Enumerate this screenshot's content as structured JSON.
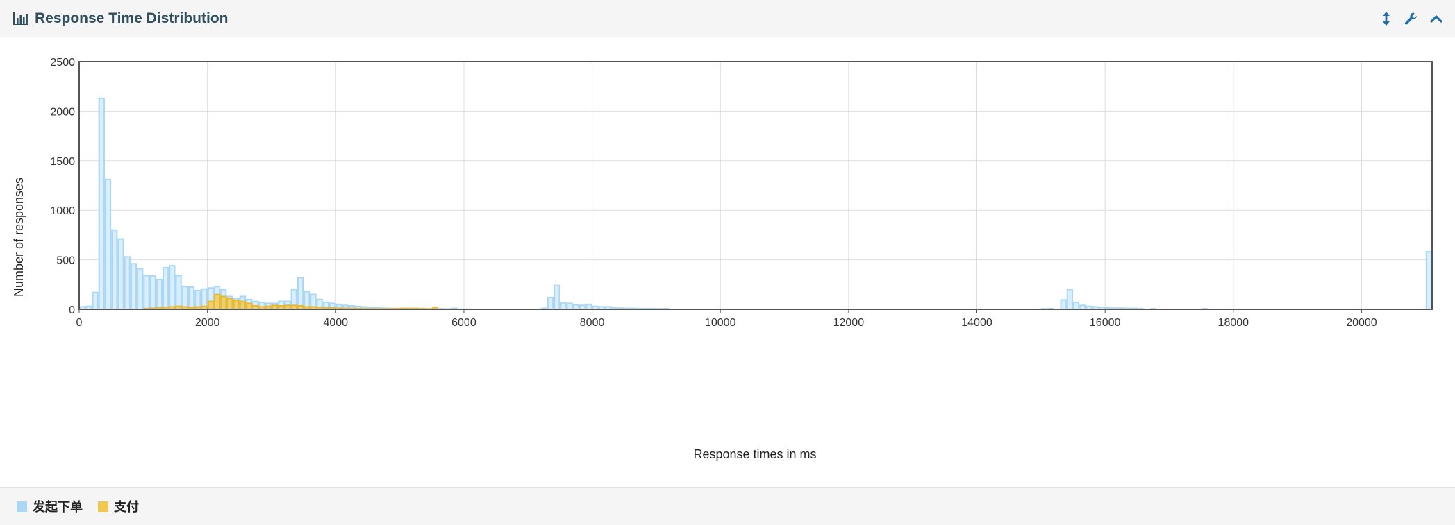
{
  "panel": {
    "title": "Response Time Distribution",
    "title_icon": "bar-chart-icon",
    "tools": [
      {
        "name": "resize-vertical-icon"
      },
      {
        "name": "wrench-icon"
      },
      {
        "name": "chevron-up-icon"
      }
    ]
  },
  "colors": {
    "series_1_fill": "#d3ebfb",
    "series_1_stroke": "#a9d7f5",
    "series_2_fill": "#f1c84f",
    "series_2_stroke": "#e8b92e",
    "header_bg": "#f5f5f5",
    "title_text": "#2f4f5f",
    "tool_icon": "#1f6fa8"
  },
  "chart_data": {
    "type": "bar",
    "title": "",
    "xlabel": "Response times in ms",
    "ylabel": "Number of responses",
    "xlim": [
      0,
      21100
    ],
    "ylim": [
      0,
      2500
    ],
    "x_ticks": [
      0,
      2000,
      4000,
      6000,
      8000,
      10000,
      12000,
      14000,
      16000,
      18000,
      20000
    ],
    "x_tick_labels": [
      "0",
      "2000",
      "4000",
      "6000",
      "8000",
      "10000",
      "12000",
      "14000",
      "16000",
      "18000",
      "20000"
    ],
    "y_ticks": [
      0,
      500,
      1000,
      1500,
      2000,
      2500
    ],
    "y_tick_labels": [
      "0",
      "500",
      "1000",
      "1500",
      "2000",
      "2500"
    ],
    "bin_width": 100,
    "grid": true,
    "legend_position": "bottom-left",
    "series": [
      {
        "name": "发起下单",
        "points": [
          [
            0,
            25
          ],
          [
            100,
            30
          ],
          [
            200,
            170
          ],
          [
            300,
            2130
          ],
          [
            400,
            1310
          ],
          [
            500,
            800
          ],
          [
            600,
            710
          ],
          [
            700,
            530
          ],
          [
            800,
            460
          ],
          [
            900,
            410
          ],
          [
            1000,
            340
          ],
          [
            1100,
            335
          ],
          [
            1200,
            300
          ],
          [
            1300,
            420
          ],
          [
            1400,
            440
          ],
          [
            1500,
            340
          ],
          [
            1600,
            230
          ],
          [
            1700,
            225
          ],
          [
            1800,
            190
          ],
          [
            1900,
            205
          ],
          [
            2000,
            215
          ],
          [
            2100,
            230
          ],
          [
            2200,
            200
          ],
          [
            2300,
            130
          ],
          [
            2400,
            110
          ],
          [
            2500,
            130
          ],
          [
            2600,
            100
          ],
          [
            2700,
            80
          ],
          [
            2800,
            70
          ],
          [
            2900,
            60
          ],
          [
            3000,
            60
          ],
          [
            3100,
            80
          ],
          [
            3200,
            80
          ],
          [
            3300,
            200
          ],
          [
            3400,
            320
          ],
          [
            3500,
            180
          ],
          [
            3600,
            150
          ],
          [
            3700,
            100
          ],
          [
            3800,
            70
          ],
          [
            3900,
            60
          ],
          [
            4000,
            50
          ],
          [
            4100,
            40
          ],
          [
            4200,
            35
          ],
          [
            4300,
            30
          ],
          [
            4400,
            25
          ],
          [
            4500,
            20
          ],
          [
            4600,
            15
          ],
          [
            4700,
            12
          ],
          [
            4800,
            10
          ],
          [
            4900,
            8
          ],
          [
            5000,
            8
          ],
          [
            5100,
            6
          ],
          [
            5200,
            5
          ],
          [
            5300,
            5
          ],
          [
            5400,
            4
          ],
          [
            5500,
            4
          ],
          [
            5600,
            6
          ],
          [
            5700,
            4
          ],
          [
            5800,
            10
          ],
          [
            5900,
            2
          ],
          [
            6000,
            2
          ],
          [
            7200,
            10
          ],
          [
            7300,
            120
          ],
          [
            7400,
            240
          ],
          [
            7500,
            65
          ],
          [
            7600,
            60
          ],
          [
            7700,
            45
          ],
          [
            7800,
            40
          ],
          [
            7900,
            50
          ],
          [
            8000,
            30
          ],
          [
            8100,
            25
          ],
          [
            8200,
            25
          ],
          [
            8300,
            15
          ],
          [
            8400,
            12
          ],
          [
            8500,
            10
          ],
          [
            8600,
            10
          ],
          [
            8700,
            8
          ],
          [
            8800,
            8
          ],
          [
            8900,
            8
          ],
          [
            9000,
            6
          ],
          [
            9100,
            8
          ],
          [
            15000,
            5
          ],
          [
            15100,
            8
          ],
          [
            15300,
            95
          ],
          [
            15400,
            200
          ],
          [
            15500,
            70
          ],
          [
            15600,
            40
          ],
          [
            15700,
            30
          ],
          [
            15800,
            25
          ],
          [
            15900,
            20
          ],
          [
            16000,
            15
          ],
          [
            16100,
            12
          ],
          [
            16200,
            12
          ],
          [
            16300,
            10
          ],
          [
            16400,
            10
          ],
          [
            16500,
            8
          ],
          [
            16700,
            6
          ],
          [
            17500,
            6
          ],
          [
            21000,
            580
          ]
        ]
      },
      {
        "name": "支付",
        "points": [
          [
            1000,
            8
          ],
          [
            1100,
            12
          ],
          [
            1200,
            18
          ],
          [
            1300,
            20
          ],
          [
            1400,
            25
          ],
          [
            1500,
            30
          ],
          [
            1600,
            25
          ],
          [
            1700,
            20
          ],
          [
            1800,
            25
          ],
          [
            1900,
            30
          ],
          [
            2000,
            80
          ],
          [
            2100,
            150
          ],
          [
            2200,
            130
          ],
          [
            2300,
            110
          ],
          [
            2400,
            90
          ],
          [
            2500,
            80
          ],
          [
            2600,
            60
          ],
          [
            2700,
            35
          ],
          [
            2800,
            25
          ],
          [
            2900,
            30
          ],
          [
            3000,
            40
          ],
          [
            3100,
            35
          ],
          [
            3200,
            40
          ],
          [
            3300,
            40
          ],
          [
            3400,
            35
          ],
          [
            3500,
            25
          ],
          [
            3600,
            25
          ],
          [
            3700,
            20
          ],
          [
            3800,
            15
          ],
          [
            3900,
            15
          ],
          [
            4000,
            12
          ],
          [
            4100,
            10
          ],
          [
            4200,
            10
          ],
          [
            4300,
            8
          ],
          [
            4400,
            8
          ],
          [
            4500,
            6
          ],
          [
            4600,
            5
          ],
          [
            4700,
            5
          ],
          [
            4800,
            6
          ],
          [
            4900,
            8
          ],
          [
            5000,
            10
          ],
          [
            5100,
            10
          ],
          [
            5200,
            10
          ],
          [
            5300,
            8
          ],
          [
            5400,
            5
          ],
          [
            5500,
            20
          ]
        ]
      }
    ]
  }
}
